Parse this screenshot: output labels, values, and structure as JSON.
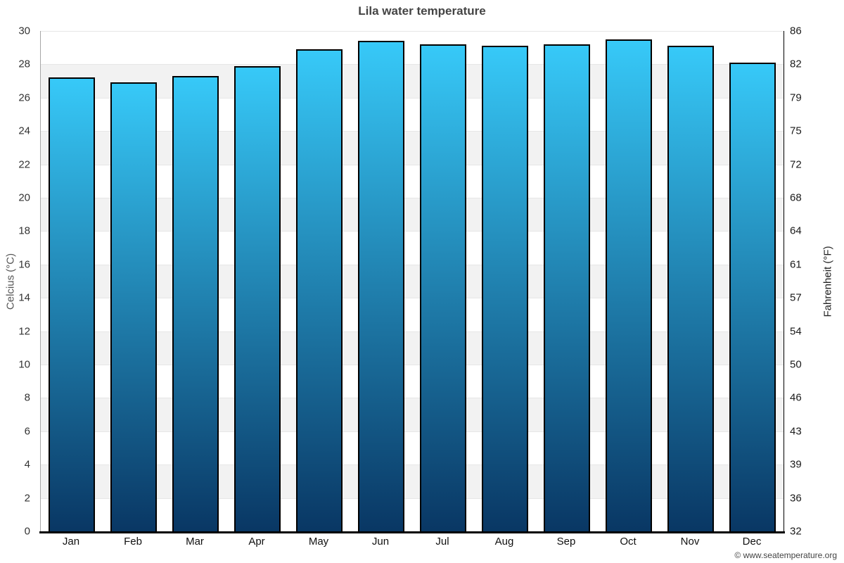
{
  "title": "Lila water temperature",
  "credits": {
    "label": "© www.seatemperature.org"
  },
  "axes": {
    "left_title": "Celcius (°C)",
    "right_title": "Fahrenheit (°F)"
  },
  "chart_data": {
    "type": "bar",
    "title": "Lila water temperature",
    "categories": [
      "Jan",
      "Feb",
      "Mar",
      "Apr",
      "May",
      "Jun",
      "Jul",
      "Aug",
      "Sep",
      "Oct",
      "Nov",
      "Dec"
    ],
    "values": [
      27.2,
      26.9,
      27.3,
      27.9,
      28.9,
      29.4,
      29.2,
      29.1,
      29.2,
      29.5,
      29.1,
      28.1
    ],
    "xlabel": "",
    "ylabel_left": "Celcius (°C)",
    "ylabel_right": "Fahrenheit (°F)",
    "ylim": [
      0,
      30
    ],
    "yticks_celsius": [
      30,
      28,
      26,
      24,
      22,
      20,
      18,
      16,
      14,
      12,
      10,
      8,
      6,
      4,
      2,
      0
    ],
    "yticks_fahrenheit": [
      86,
      82,
      79,
      75,
      72,
      68,
      64,
      61,
      57,
      54,
      50,
      46,
      43,
      39,
      36,
      32
    ],
    "grid": "alternating-horizontal-bands",
    "legend": "none",
    "colors": {
      "bar_gradient_top": "#37c9f8",
      "bar_gradient_bottom": "#093764",
      "bar_border": "#000000",
      "band_gray": "#f2f2f2",
      "band_white": "#ffffff",
      "gridline": "#e6e6e6",
      "axis_left_spine": "#a6a6a6",
      "axis_right_spine": "#000000",
      "axis_bottom": "#000000",
      "title_text": "#444444"
    }
  }
}
